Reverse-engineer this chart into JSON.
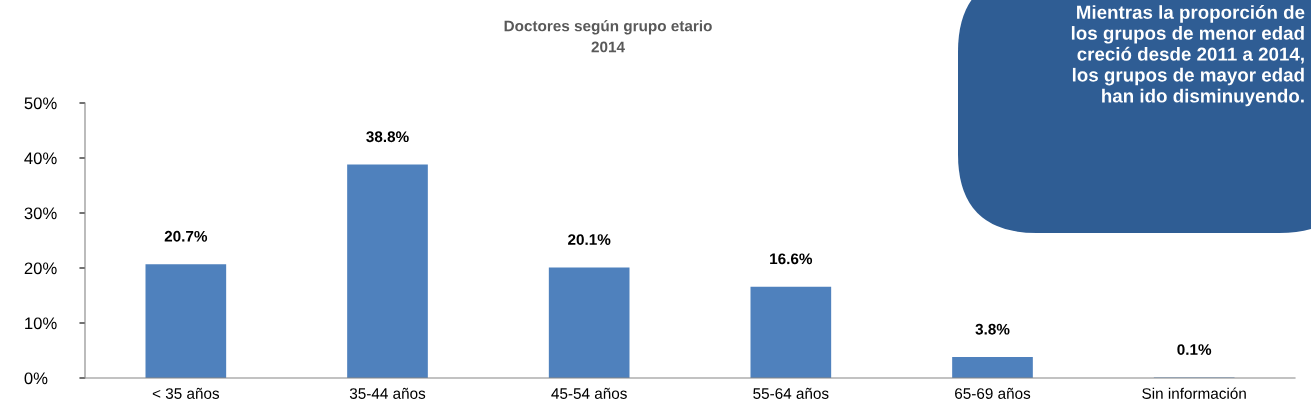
{
  "chart_data": {
    "type": "bar",
    "title": "Doctores según grupo etario\n2014",
    "categories": [
      "< 35 años",
      "35-44 años",
      "45-54 años",
      "55-64 años",
      "65-69 años",
      "Sin información"
    ],
    "values": [
      20.7,
      38.8,
      20.1,
      16.6,
      3.8,
      0.1
    ],
    "color": "#4f81bd",
    "value_labels": [
      "20.7%",
      "38.8%",
      "20.1%",
      "16.6%",
      "3.8%",
      "0.1%"
    ],
    "ylim": [
      0,
      50
    ],
    "yticks": [
      {
        "value": 0,
        "label": "0%"
      },
      {
        "value": 10,
        "label": "10%"
      },
      {
        "value": 20,
        "label": "20%"
      },
      {
        "value": 30,
        "label": "30%"
      },
      {
        "value": 40,
        "label": "40%"
      },
      {
        "value": 50,
        "label": "50%"
      }
    ],
    "grid": false,
    "annotations": [
      "Mientras la proporción de\nlos grupos de menor edad\ncreció desde 2011 a 2014,\nlos grupos de mayor edad\nhan ido disminuyendo."
    ]
  }
}
